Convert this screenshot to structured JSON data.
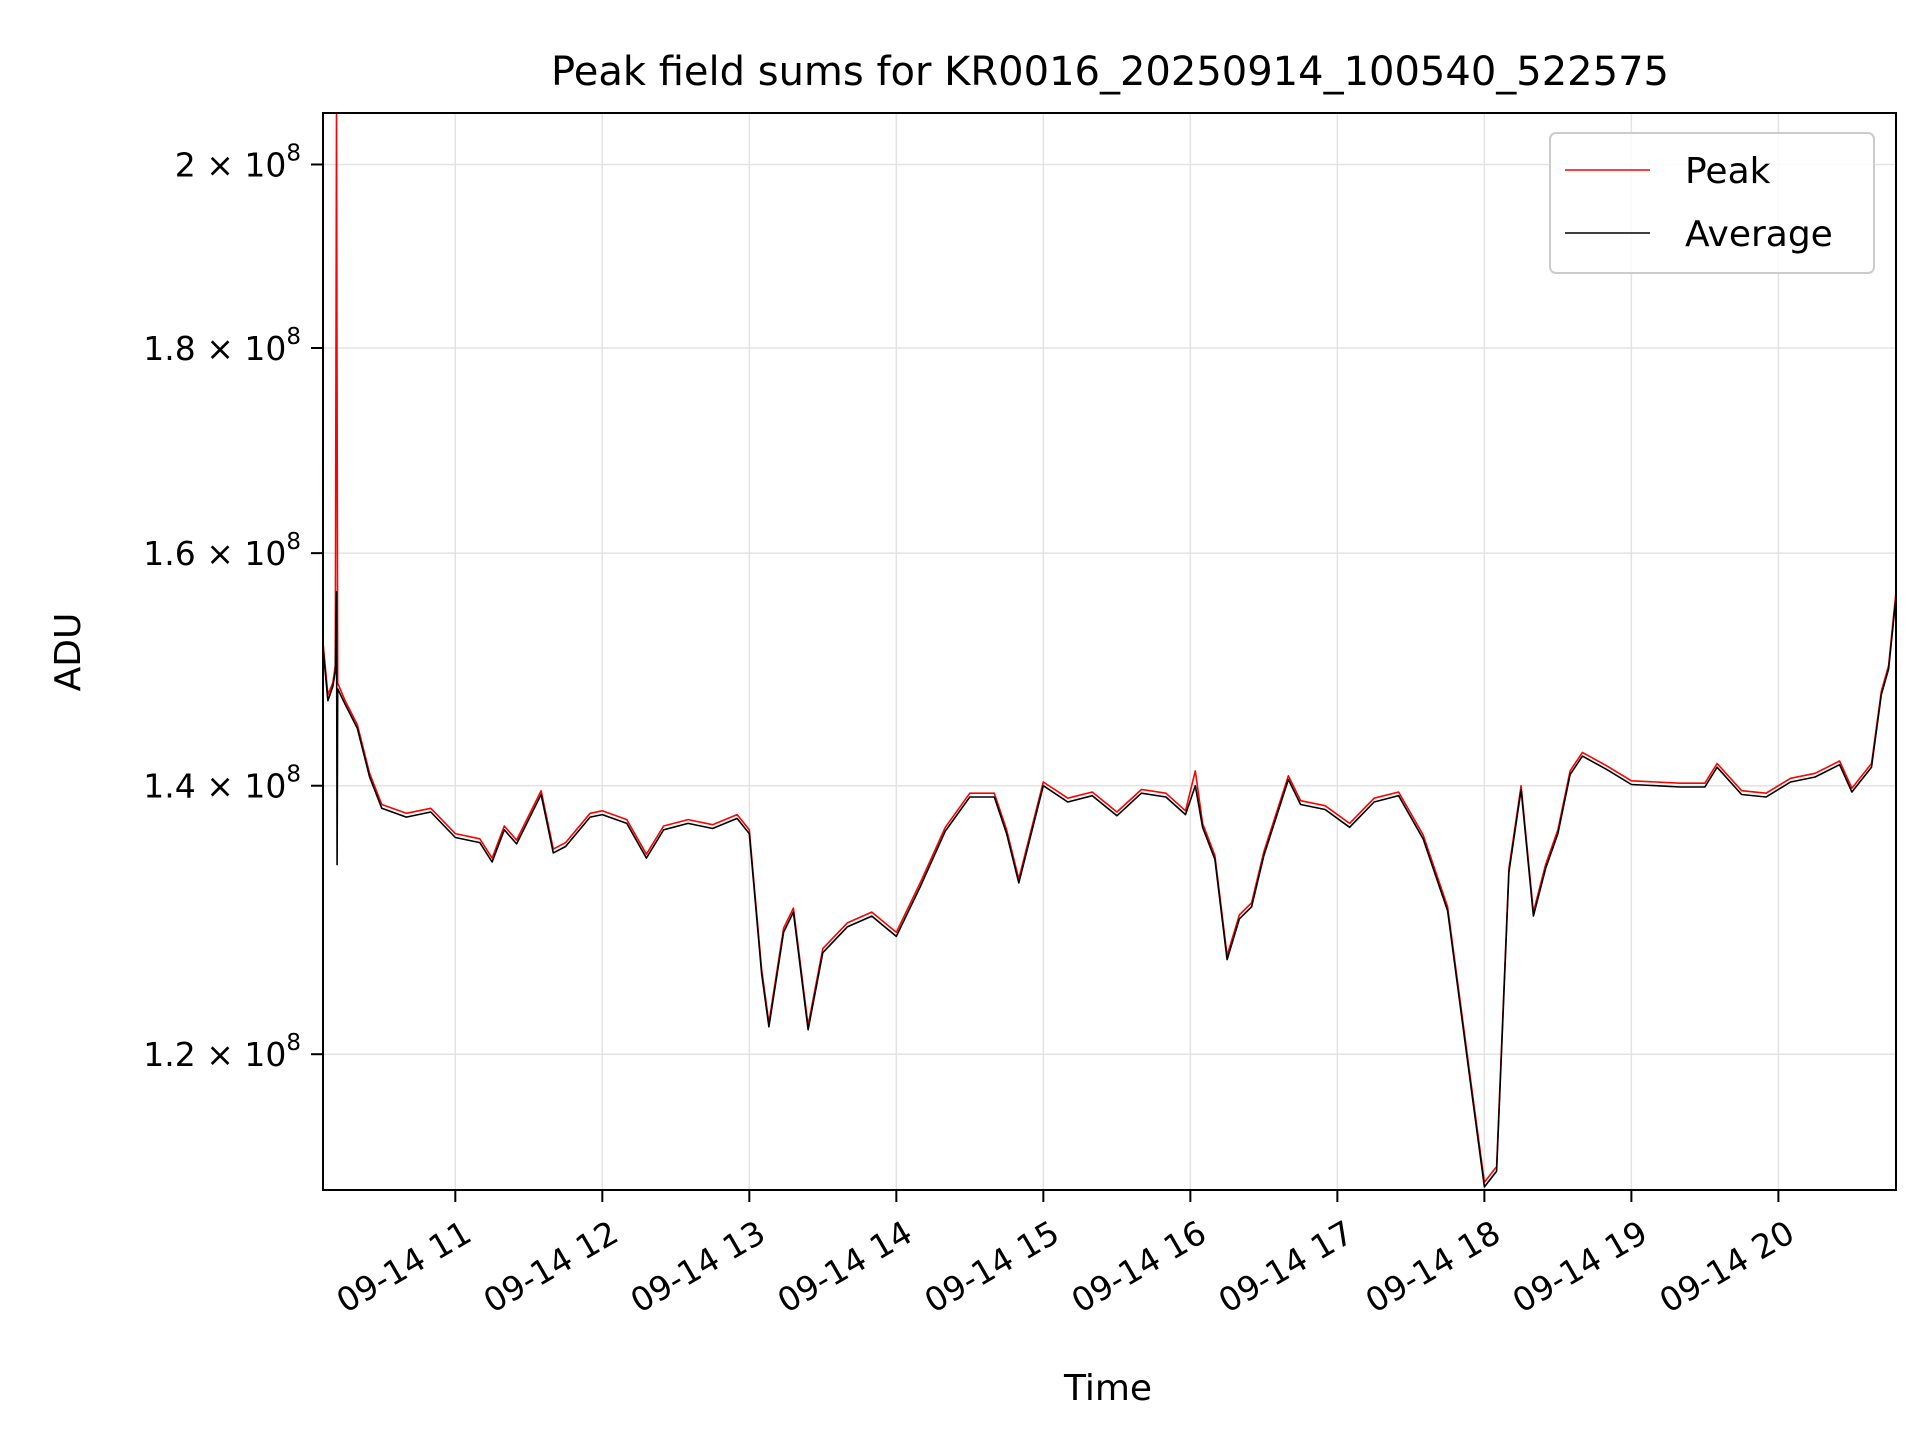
{
  "chart_data": {
    "type": "line",
    "title": "Peak field sums for KR0016_20250914_100540_522575",
    "xlabel": "Time",
    "ylabel": "ADU",
    "y_scale": "log",
    "ylim": [
      111000000,
      206000000
    ],
    "xlim": [
      "2025-09-14 10:06",
      "2025-09-14 20:48"
    ],
    "grid": true,
    "legend_position": "top-right",
    "x_ticks": [
      {
        "t": "2025-09-14 11:00",
        "label": "09-14 11"
      },
      {
        "t": "2025-09-14 12:00",
        "label": "09-14 12"
      },
      {
        "t": "2025-09-14 13:00",
        "label": "09-14 13"
      },
      {
        "t": "2025-09-14 14:00",
        "label": "09-14 14"
      },
      {
        "t": "2025-09-14 15:00",
        "label": "09-14 15"
      },
      {
        "t": "2025-09-14 16:00",
        "label": "09-14 16"
      },
      {
        "t": "2025-09-14 17:00",
        "label": "09-14 17"
      },
      {
        "t": "2025-09-14 18:00",
        "label": "09-14 18"
      },
      {
        "t": "2025-09-14 19:00",
        "label": "09-14 19"
      },
      {
        "t": "2025-09-14 20:00",
        "label": "09-14 20"
      }
    ],
    "y_ticks": [
      {
        "v": 120000000,
        "mant": "1.2",
        "exp": "8"
      },
      {
        "v": 140000000,
        "mant": "1.4",
        "exp": "8"
      },
      {
        "v": 160000000,
        "mant": "1.6",
        "exp": "8"
      },
      {
        "v": 180000000,
        "mant": "1.8",
        "exp": "8"
      },
      {
        "v": 200000000,
        "mant": "2",
        "exp": "8"
      }
    ],
    "series": [
      {
        "name": "Peak",
        "color": "#ff0000",
        "points": [
          [
            "2025-09-14 10:06",
            152000000
          ],
          [
            "2025-09-14 10:08",
            147500000
          ],
          [
            "2025-09-14 10:10",
            148500000
          ],
          [
            "2025-09-14 10:11",
            150000000
          ],
          [
            "2025-09-14 10:11:30",
            206000000
          ],
          [
            "2025-09-14 10:12",
            148500000
          ],
          [
            "2025-09-14 10:15",
            147000000
          ],
          [
            "2025-09-14 10:20",
            145000000
          ],
          [
            "2025-09-14 10:25",
            141000000
          ],
          [
            "2025-09-14 10:30",
            138500000
          ],
          [
            "2025-09-14 10:40",
            137800000
          ],
          [
            "2025-09-14 10:50",
            138200000
          ],
          [
            "2025-09-14 11:00",
            136200000
          ],
          [
            "2025-09-14 11:10",
            135800000
          ],
          [
            "2025-09-14 11:15",
            134300000
          ],
          [
            "2025-09-14 11:20",
            136800000
          ],
          [
            "2025-09-14 11:25",
            135700000
          ],
          [
            "2025-09-14 11:35",
            139600000
          ],
          [
            "2025-09-14 11:40",
            135000000
          ],
          [
            "2025-09-14 11:45",
            135500000
          ],
          [
            "2025-09-14 11:55",
            137800000
          ],
          [
            "2025-09-14 12:00",
            138000000
          ],
          [
            "2025-09-14 12:10",
            137300000
          ],
          [
            "2025-09-14 12:18",
            134600000
          ],
          [
            "2025-09-14 12:25",
            136800000
          ],
          [
            "2025-09-14 12:35",
            137300000
          ],
          [
            "2025-09-14 12:45",
            136900000
          ],
          [
            "2025-09-14 12:55",
            137700000
          ],
          [
            "2025-09-14 13:00",
            136500000
          ],
          [
            "2025-09-14 13:05",
            126000000
          ],
          [
            "2025-09-14 13:08",
            122200000
          ],
          [
            "2025-09-14 13:14",
            129000000
          ],
          [
            "2025-09-14 13:18",
            130500000
          ],
          [
            "2025-09-14 13:24",
            122000000
          ],
          [
            "2025-09-14 13:30",
            127500000
          ],
          [
            "2025-09-14 13:40",
            129400000
          ],
          [
            "2025-09-14 13:50",
            130200000
          ],
          [
            "2025-09-14 14:00",
            128700000
          ],
          [
            "2025-09-14 14:10",
            132500000
          ],
          [
            "2025-09-14 14:20",
            136700000
          ],
          [
            "2025-09-14 14:30",
            139400000
          ],
          [
            "2025-09-14 14:40",
            139400000
          ],
          [
            "2025-09-14 14:45",
            136500000
          ],
          [
            "2025-09-14 14:50",
            132700000
          ],
          [
            "2025-09-14 15:00",
            140300000
          ],
          [
            "2025-09-14 15:10",
            139000000
          ],
          [
            "2025-09-14 15:20",
            139500000
          ],
          [
            "2025-09-14 15:30",
            137900000
          ],
          [
            "2025-09-14 15:40",
            139700000
          ],
          [
            "2025-09-14 15:50",
            139400000
          ],
          [
            "2025-09-14 15:58",
            138000000
          ],
          [
            "2025-09-14 16:02",
            141200000
          ],
          [
            "2025-09-14 16:05",
            137000000
          ],
          [
            "2025-09-14 16:10",
            134500000
          ],
          [
            "2025-09-14 16:15",
            127000000
          ],
          [
            "2025-09-14 16:20",
            130000000
          ],
          [
            "2025-09-14 16:25",
            130900000
          ],
          [
            "2025-09-14 16:30",
            134800000
          ],
          [
            "2025-09-14 16:40",
            140800000
          ],
          [
            "2025-09-14 16:45",
            138800000
          ],
          [
            "2025-09-14 16:55",
            138400000
          ],
          [
            "2025-09-14 17:05",
            137000000
          ],
          [
            "2025-09-14 17:15",
            139000000
          ],
          [
            "2025-09-14 17:25",
            139500000
          ],
          [
            "2025-09-14 17:35",
            136100000
          ],
          [
            "2025-09-14 17:45",
            130600000
          ],
          [
            "2025-09-14 17:55",
            117500000
          ],
          [
            "2025-09-14 18:00",
            111500000
          ],
          [
            "2025-09-14 18:05",
            112500000
          ],
          [
            "2025-09-14 18:10",
            133500000
          ],
          [
            "2025-09-14 18:15",
            140000000
          ],
          [
            "2025-09-14 18:20",
            130200000
          ],
          [
            "2025-09-14 18:25",
            133800000
          ],
          [
            "2025-09-14 18:30",
            136500000
          ],
          [
            "2025-09-14 18:35",
            141200000
          ],
          [
            "2025-09-14 18:40",
            142700000
          ],
          [
            "2025-09-14 18:50",
            141600000
          ],
          [
            "2025-09-14 19:00",
            140400000
          ],
          [
            "2025-09-14 19:10",
            140300000
          ],
          [
            "2025-09-14 19:20",
            140200000
          ],
          [
            "2025-09-14 19:30",
            140200000
          ],
          [
            "2025-09-14 19:35",
            141800000
          ],
          [
            "2025-09-14 19:45",
            139600000
          ],
          [
            "2025-09-14 19:55",
            139400000
          ],
          [
            "2025-09-14 20:05",
            140600000
          ],
          [
            "2025-09-14 20:15",
            141000000
          ],
          [
            "2025-09-14 20:25",
            142000000
          ],
          [
            "2025-09-14 20:30",
            139800000
          ],
          [
            "2025-09-14 20:38",
            141800000
          ],
          [
            "2025-09-14 20:42",
            147800000
          ],
          [
            "2025-09-14 20:45",
            150000000
          ],
          [
            "2025-09-14 20:48",
            156500000
          ]
        ]
      },
      {
        "name": "Average",
        "color": "#000000",
        "points": [
          [
            "2025-09-14 10:06",
            151500000
          ],
          [
            "2025-09-14 10:08",
            147000000
          ],
          [
            "2025-09-14 10:10",
            148200000
          ],
          [
            "2025-09-14 10:11",
            149500000
          ],
          [
            "2025-09-14 10:11:30",
            156500000
          ],
          [
            "2025-09-14 10:11:45",
            133800000
          ],
          [
            "2025-09-14 10:12",
            148000000
          ],
          [
            "2025-09-14 10:15",
            146700000
          ],
          [
            "2025-09-14 10:20",
            144700000
          ],
          [
            "2025-09-14 10:25",
            140700000
          ],
          [
            "2025-09-14 10:30",
            138200000
          ],
          [
            "2025-09-14 10:40",
            137500000
          ],
          [
            "2025-09-14 10:50",
            137900000
          ],
          [
            "2025-09-14 11:00",
            135900000
          ],
          [
            "2025-09-14 11:10",
            135500000
          ],
          [
            "2025-09-14 11:15",
            134000000
          ],
          [
            "2025-09-14 11:20",
            136500000
          ],
          [
            "2025-09-14 11:25",
            135400000
          ],
          [
            "2025-09-14 11:35",
            139300000
          ],
          [
            "2025-09-14 11:40",
            134700000
          ],
          [
            "2025-09-14 11:45",
            135200000
          ],
          [
            "2025-09-14 11:55",
            137500000
          ],
          [
            "2025-09-14 12:00",
            137700000
          ],
          [
            "2025-09-14 12:10",
            137000000
          ],
          [
            "2025-09-14 12:18",
            134300000
          ],
          [
            "2025-09-14 12:25",
            136500000
          ],
          [
            "2025-09-14 12:35",
            137000000
          ],
          [
            "2025-09-14 12:45",
            136600000
          ],
          [
            "2025-09-14 12:55",
            137400000
          ],
          [
            "2025-09-14 13:00",
            136200000
          ],
          [
            "2025-09-14 13:05",
            125700000
          ],
          [
            "2025-09-14 13:08",
            121900000
          ],
          [
            "2025-09-14 13:14",
            128700000
          ],
          [
            "2025-09-14 13:18",
            130200000
          ],
          [
            "2025-09-14 13:24",
            121700000
          ],
          [
            "2025-09-14 13:30",
            127200000
          ],
          [
            "2025-09-14 13:40",
            129100000
          ],
          [
            "2025-09-14 13:50",
            129900000
          ],
          [
            "2025-09-14 14:00",
            128400000
          ],
          [
            "2025-09-14 14:10",
            132200000
          ],
          [
            "2025-09-14 14:20",
            136400000
          ],
          [
            "2025-09-14 14:30",
            139100000
          ],
          [
            "2025-09-14 14:40",
            139100000
          ],
          [
            "2025-09-14 14:45",
            136200000
          ],
          [
            "2025-09-14 14:50",
            132400000
          ],
          [
            "2025-09-14 15:00",
            140000000
          ],
          [
            "2025-09-14 15:10",
            138700000
          ],
          [
            "2025-09-14 15:20",
            139200000
          ],
          [
            "2025-09-14 15:30",
            137600000
          ],
          [
            "2025-09-14 15:40",
            139400000
          ],
          [
            "2025-09-14 15:50",
            139100000
          ],
          [
            "2025-09-14 15:58",
            137700000
          ],
          [
            "2025-09-14 16:02",
            140000000
          ],
          [
            "2025-09-14 16:05",
            136700000
          ],
          [
            "2025-09-14 16:10",
            134200000
          ],
          [
            "2025-09-14 16:15",
            126700000
          ],
          [
            "2025-09-14 16:20",
            129700000
          ],
          [
            "2025-09-14 16:25",
            130600000
          ],
          [
            "2025-09-14 16:30",
            134500000
          ],
          [
            "2025-09-14 16:40",
            140500000
          ],
          [
            "2025-09-14 16:45",
            138500000
          ],
          [
            "2025-09-14 16:55",
            138100000
          ],
          [
            "2025-09-14 17:05",
            136700000
          ],
          [
            "2025-09-14 17:15",
            138700000
          ],
          [
            "2025-09-14 17:25",
            139200000
          ],
          [
            "2025-09-14 17:35",
            135800000
          ],
          [
            "2025-09-14 17:45",
            130300000
          ],
          [
            "2025-09-14 17:55",
            117200000
          ],
          [
            "2025-09-14 18:00",
            111200000
          ],
          [
            "2025-09-14 18:05",
            112200000
          ],
          [
            "2025-09-14 18:10",
            133200000
          ],
          [
            "2025-09-14 18:15",
            139700000
          ],
          [
            "2025-09-14 18:20",
            129900000
          ],
          [
            "2025-09-14 18:25",
            133500000
          ],
          [
            "2025-09-14 18:30",
            136200000
          ],
          [
            "2025-09-14 18:35",
            140900000
          ],
          [
            "2025-09-14 18:40",
            142400000
          ],
          [
            "2025-09-14 18:50",
            141300000
          ],
          [
            "2025-09-14 19:00",
            140100000
          ],
          [
            "2025-09-14 19:10",
            140000000
          ],
          [
            "2025-09-14 19:20",
            139900000
          ],
          [
            "2025-09-14 19:30",
            139900000
          ],
          [
            "2025-09-14 19:35",
            141500000
          ],
          [
            "2025-09-14 19:45",
            139300000
          ],
          [
            "2025-09-14 19:55",
            139100000
          ],
          [
            "2025-09-14 20:05",
            140300000
          ],
          [
            "2025-09-14 20:15",
            140700000
          ],
          [
            "2025-09-14 20:25",
            141700000
          ],
          [
            "2025-09-14 20:30",
            139500000
          ],
          [
            "2025-09-14 20:38",
            141500000
          ],
          [
            "2025-09-14 20:42",
            147500000
          ],
          [
            "2025-09-14 20:45",
            149700000
          ],
          [
            "2025-09-14 20:48",
            156000000
          ]
        ]
      }
    ]
  }
}
